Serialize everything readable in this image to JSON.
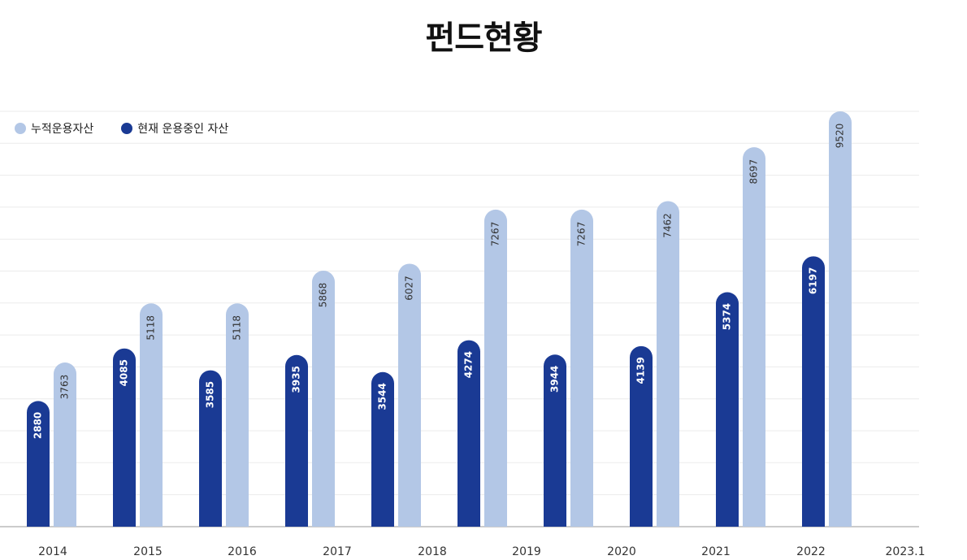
{
  "title": "펀드현황",
  "colors": {
    "cumulative": "#b3c7e6",
    "current": "#1a3a94",
    "grid": "#ebebeb",
    "axis": "#bbbbbb"
  },
  "chart_data": {
    "type": "bar",
    "title": "펀드현황",
    "categories": [
      "2014",
      "2015",
      "2016",
      "2017",
      "2018",
      "2019",
      "2020",
      "2021",
      "2022",
      "2023.1"
    ],
    "series": [
      {
        "name": "현재 운용중인 자산",
        "values": [
          2880,
          4085,
          3585,
          3935,
          3544,
          4274,
          3944,
          4139,
          5374,
          6197
        ]
      },
      {
        "name": "누적운용자산",
        "values": [
          3763,
          5118,
          5118,
          5868,
          6027,
          7267,
          7267,
          7462,
          8697,
          9520
        ]
      }
    ],
    "ylim": [
      0,
      9520
    ],
    "grid": true,
    "legend": "top-left"
  }
}
